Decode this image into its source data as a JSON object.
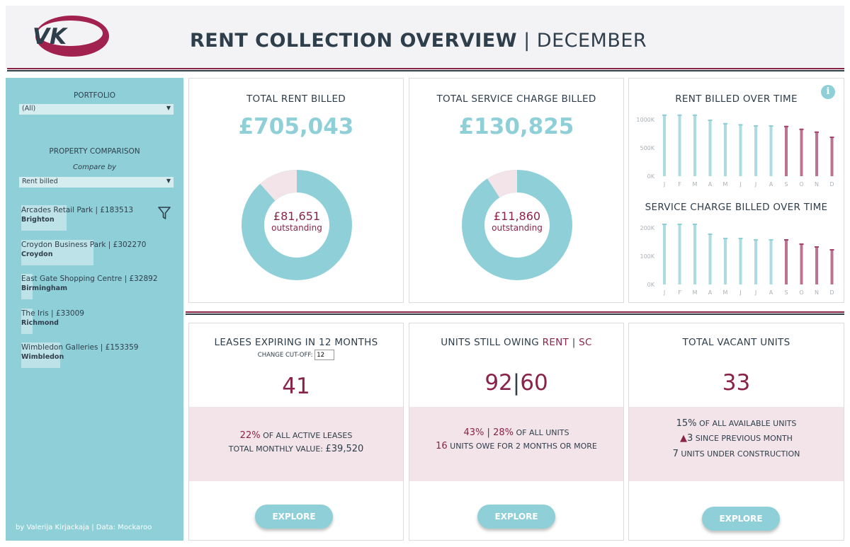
{
  "header": {
    "logo_text": "VK",
    "title_bold": "RENT COLLECTION OVERVIEW",
    "title_sep": " | ",
    "title_light": "DECEMBER"
  },
  "sidebar": {
    "portfolio_label": "PORTFOLIO",
    "portfolio_value": "(All)",
    "comparison_label": "PROPERTY COMPARISON",
    "compare_by_label": "Compare by",
    "compare_by_value": "Rent billed",
    "properties": [
      {
        "name": "Arcades Retail Park | £183513",
        "city": "Brighton",
        "value": 183513
      },
      {
        "name": "Croydon Business Park | £302270",
        "city": "Croydon",
        "value": 302270
      },
      {
        "name": "East Gate Shopping Centre | £32892",
        "city": "Birmingham",
        "value": 32892
      },
      {
        "name": "The Iris | £33009",
        "city": "Richmond",
        "value": 33009
      },
      {
        "name": "Wimbledon Galleries | £153359",
        "city": "Wimbledon",
        "value": 153359
      }
    ],
    "credit": "by Valerija Kirjackaja | Data: Mockaroo"
  },
  "rent": {
    "title": "TOTAL RENT BILLED",
    "value": "£705,043",
    "outstanding": "£81,651",
    "outstanding_label": "outstanding",
    "outstanding_fraction": 0.116
  },
  "service": {
    "title": "TOTAL SERVICE CHARGE BILLED",
    "value": "£130,825",
    "outstanding": "£11,860",
    "outstanding_label": "outstanding",
    "outstanding_fraction": 0.091
  },
  "chart_data": [
    {
      "type": "bar",
      "title": "RENT BILLED OVER TIME",
      "categories": [
        "J",
        "F",
        "M",
        "A",
        "M",
        "J",
        "J",
        "A",
        "S",
        "O",
        "N",
        "D"
      ],
      "values": [
        1090,
        1090,
        1090,
        1000,
        940,
        920,
        900,
        900,
        890,
        840,
        790,
        700
      ],
      "highlight_from_index": 8,
      "yticks": [
        0,
        500,
        1000
      ],
      "ytick_labels": [
        "0K",
        "500K",
        "1000K"
      ],
      "ylim": [
        0,
        1150
      ]
    },
    {
      "type": "bar",
      "title": "SERVICE CHARGE BILLED OVER TIME",
      "categories": [
        "J",
        "F",
        "M",
        "A",
        "M",
        "J",
        "J",
        "A",
        "S",
        "O",
        "N",
        "D"
      ],
      "values": [
        215,
        215,
        215,
        180,
        165,
        165,
        160,
        160,
        160,
        145,
        135,
        125
      ],
      "highlight_from_index": 8,
      "yticks": [
        0,
        100,
        200
      ],
      "ytick_labels": [
        "0K",
        "100K",
        "200K"
      ],
      "ylim": [
        0,
        230
      ]
    }
  ],
  "colors": {
    "teal": "#8fd0d8",
    "maroon": "#a5446a",
    "pale_pink": "#f2e4e9"
  },
  "leases": {
    "title": "LEASES EXPIRING IN 12 MONTHS",
    "cutoff_label": "CHANGE CUT-OFF:",
    "cutoff_value": "12",
    "value": "41",
    "pct": "22%",
    "pct_text": " OF ALL ACTIVE LEASES",
    "monthly_label": "TOTAL MONTHLY VALUE: ",
    "monthly_value": "£39,520",
    "explore": "EXPLORE"
  },
  "owing": {
    "title_prefix": "UNITS STILL OWING ",
    "title_rent": "RENT",
    "title_sep": " | ",
    "title_sc": "SC",
    "rent_units": "92",
    "sep": "|",
    "sc_units": "60",
    "pct_rent": "43%",
    "pct_sep": " | ",
    "pct_sc": "28%",
    "pct_text": " OF ALL UNITS",
    "long_count": "16",
    "long_text": " UNITS OWE FOR 2 MONTHS OR MORE",
    "explore": "EXPLORE"
  },
  "vacant": {
    "title": "TOTAL VACANT UNITS",
    "value": "33",
    "pct": "15%",
    "pct_text": " OF ALL AVAILABLE UNITS",
    "delta_arrow": "▲",
    "delta": "3",
    "delta_text": " SINCE PREVIOUS MONTH",
    "construction": "7",
    "construction_text": " UNITS UNDER CONSTRUCTION",
    "explore": "EXPLORE"
  }
}
